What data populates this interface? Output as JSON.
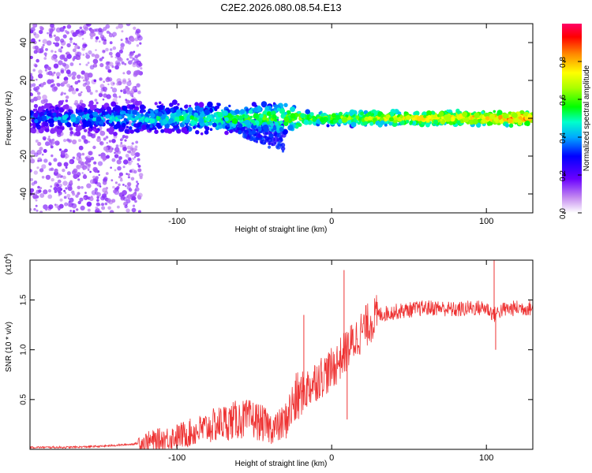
{
  "page_title": "C2E2.2026.080.08.54.E13",
  "chart_data": [
    {
      "id": "spectrogram",
      "type": "heatmap",
      "title": "C2E2.2026.080.08.54.E13",
      "xlabel": "Height of straight line (km)",
      "ylabel": "Frequency (Hz)",
      "xlim": [
        -195,
        130
      ],
      "ylim": [
        -50,
        50
      ],
      "x_ticks": [
        -100,
        0,
        100
      ],
      "y_ticks": [
        -40,
        -20,
        0,
        20,
        40
      ],
      "colorbar": {
        "label": "Normalized spectral amplitude",
        "range": [
          0,
          1
        ],
        "ticks": [
          "0.0",
          "0.2",
          "0.4",
          "0.6",
          "0.8"
        ],
        "colormap": "rainbow"
      },
      "features": [
        {
          "name": "noise-band",
          "x_range": [
            -195,
            -123
          ],
          "freq_range": [
            -50,
            50
          ],
          "amplitude": 0.08
        },
        {
          "name": "carrier-line",
          "x_range": [
            -195,
            130
          ],
          "freq_center": 0,
          "amplitude_start": 0.35,
          "amplitude_end": 0.85
        },
        {
          "name": "low-frequency-tail",
          "x_range": [
            -70,
            -30
          ],
          "freq_range": [
            -20,
            0
          ],
          "amplitude": 0.25
        }
      ]
    },
    {
      "id": "snr",
      "type": "line",
      "xlabel": "Height of straight line (km)",
      "ylabel": "SNR (10 * v/v)",
      "y_multiplier": "(x10",
      "y_multiplier_exp": "4",
      "xlim": [
        -195,
        130
      ],
      "ylim": [
        0,
        1.9
      ],
      "x_ticks": [
        -100,
        0,
        100
      ],
      "y_ticks": [
        "0.5",
        "1.0",
        "1.5"
      ],
      "color": "#ee3333",
      "series": [
        {
          "name": "SNR",
          "x": [
            -195,
            -170,
            -150,
            -130,
            -120,
            -110,
            -100,
            -90,
            -80,
            -70,
            -60,
            -50,
            -40,
            -35,
            -30,
            -25,
            -20,
            -15,
            -10,
            -5,
            0,
            5,
            10,
            15,
            20,
            25,
            30,
            40,
            50,
            60,
            70,
            80,
            90,
            100,
            105,
            110,
            120,
            130
          ],
          "y": [
            0.02,
            0.02,
            0.03,
            0.05,
            0.07,
            0.1,
            0.13,
            0.17,
            0.22,
            0.27,
            0.3,
            0.3,
            0.22,
            0.22,
            0.28,
            0.45,
            0.55,
            0.62,
            0.7,
            0.75,
            0.8,
            0.9,
            1.0,
            1.1,
            1.2,
            1.28,
            1.35,
            1.38,
            1.4,
            1.42,
            1.42,
            1.4,
            1.42,
            1.42,
            1.35,
            1.4,
            1.42,
            1.42
          ]
        }
      ],
      "spikes": [
        {
          "x": -18,
          "y": 1.35
        },
        {
          "x": 8,
          "y": 1.8
        },
        {
          "x": 10,
          "y": 0.3
        },
        {
          "x": 105,
          "y": 1.9
        },
        {
          "x": 106,
          "y": 1.0
        }
      ]
    }
  ]
}
